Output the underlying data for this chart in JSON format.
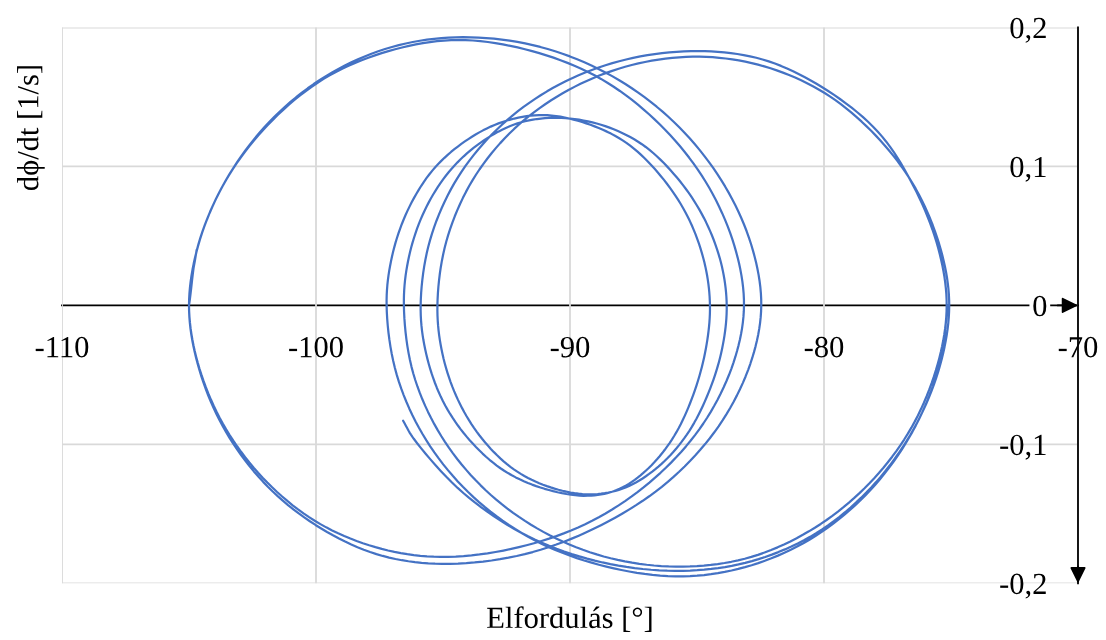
{
  "chart_data": {
    "type": "line",
    "xlabel": "Elfordulás [°]",
    "ylabel": "dϕ/dt [1/s]",
    "xlim": [
      -110,
      -70
    ],
    "xticks": [
      -110,
      -100,
      -90,
      -80,
      -70
    ],
    "ylim": [
      -0.2,
      0.2
    ],
    "yticks": [
      {
        "value": -0.2,
        "label": "-0,2"
      },
      {
        "value": -0.1,
        "label": "-0,1"
      },
      0,
      {
        "value": 0.1,
        "label": "0,1"
      },
      {
        "value": 0.2,
        "label": "0,2"
      }
    ],
    "grid": true,
    "series": [
      {
        "color": "#4472c4",
        "x": [
          -105.0,
          -104.63,
          -103.55,
          -101.84,
          -99.61,
          -97.01,
          -94.21,
          -91.17,
          -88.34,
          -85.91,
          -84.04,
          -82.87,
          -82.47,
          -82.9,
          -84.15,
          -86.15,
          -88.76,
          -91.78,
          -95.04,
          -97.62,
          -100.02,
          -102.08,
          -103.67,
          -104.66,
          -105.0,
          -104.64,
          -103.58,
          -101.89,
          -99.7,
          -97.15,
          -94.4,
          -91.49,
          -88.78,
          -86.45,
          -84.66,
          -83.53,
          -83.15,
          -83.56,
          -84.75,
          -86.65,
          -89.13,
          -92.01,
          -95.1,
          -97.66,
          -100.05,
          -102.1,
          -103.67,
          -104.66,
          -105.0,
          -104.7
        ],
        "values": [
          0,
          0.044,
          0.09,
          0.132,
          0.165,
          0.186,
          0.193,
          0.186,
          0.165,
          0.132,
          0.09,
          0.044,
          0,
          -0.042,
          -0.087,
          -0.127,
          -0.158,
          -0.179,
          -0.186,
          -0.179,
          -0.158,
          -0.127,
          -0.087,
          -0.042,
          0,
          0.043,
          0.089,
          0.13,
          0.163,
          0.183,
          0.191,
          0.183,
          0.163,
          0.13,
          0.089,
          0.043,
          0,
          -0.041,
          -0.085,
          -0.124,
          -0.155,
          -0.174,
          -0.181,
          -0.174,
          -0.155,
          -0.124,
          -0.085,
          -0.041,
          0,
          0.04
        ]
      },
      {
        "color": "#4472c4",
        "x": [
          -75.12,
          -75.47,
          -76.52,
          -78.18,
          -80.34,
          -82.85,
          -85.55,
          -88.57,
          -91.39,
          -93.8,
          -95.66,
          -96.82,
          -97.22,
          -97.01,
          -96.4,
          -95.42,
          -94.14,
          -92.66,
          -91.06,
          -89.36,
          -87.78,
          -86.42,
          -85.37,
          -84.71,
          -84.49,
          -84.65,
          -85.14,
          -85.9,
          -86.9,
          -88.05,
          -89.3,
          -91.0,
          -92.59,
          -93.95,
          -95.0,
          -95.66,
          -95.88,
          -95.51,
          -94.42,
          -92.68,
          -90.42,
          -87.79,
          -84.96,
          -82.42,
          -80.07,
          -77.88,
          -76.48,
          -75.5,
          -75.17,
          -75.52,
          -76.56,
          -78.21,
          -80.36,
          -82.86,
          -85.55,
          -88.4,
          -91.05,
          -93.32,
          -95.07,
          -96.17,
          -96.54,
          -96.34,
          -95.73,
          -94.77,
          -93.53,
          -92.07,
          -90.51,
          -88.78,
          -87.17,
          -85.79,
          -84.73,
          -84.06,
          -83.83,
          -84.01,
          -84.55,
          -85.4,
          -86.52,
          -87.81,
          -89.2,
          -90.76,
          -92.21,
          -93.46,
          -94.41,
          -95.02,
          -95.22,
          -94.87,
          -93.84,
          -92.2,
          -90.06,
          -87.57,
          -84.9,
          -82.35,
          -79.99,
          -77.95,
          -76.39,
          -75.4,
          -75.07,
          -75.43,
          -76.47,
          -78.14,
          -80.31,
          -82.84,
          -85.55,
          -88.72,
          -91.67,
          -94.2,
          -96.15,
          -96.57
        ],
        "values": [
          0,
          -0.044,
          -0.091,
          -0.133,
          -0.166,
          -0.187,
          -0.195,
          -0.188,
          -0.169,
          -0.138,
          -0.097,
          -0.05,
          0,
          0.035,
          0.068,
          0.097,
          0.118,
          0.132,
          0.137,
          0.131,
          0.117,
          0.093,
          0.064,
          0.031,
          0,
          -0.031,
          -0.064,
          -0.094,
          -0.117,
          -0.132,
          -0.137,
          -0.132,
          -0.119,
          -0.097,
          -0.069,
          -0.035,
          0,
          0.047,
          0.092,
          0.13,
          0.159,
          0.177,
          0.183,
          0.177,
          0.157,
          0.125,
          0.086,
          0.041,
          0,
          -0.042,
          -0.088,
          -0.128,
          -0.16,
          -0.181,
          -0.188,
          -0.182,
          -0.163,
          -0.133,
          -0.094,
          -0.049,
          0,
          0.035,
          0.068,
          0.096,
          0.117,
          0.131,
          0.135,
          0.13,
          0.116,
          0.092,
          0.063,
          0.031,
          0,
          -0.031,
          -0.063,
          -0.093,
          -0.116,
          -0.131,
          -0.136,
          -0.131,
          -0.118,
          -0.096,
          -0.068,
          -0.035,
          0,
          0.046,
          0.09,
          0.127,
          0.155,
          0.173,
          0.179,
          0.172,
          0.153,
          0.122,
          0.084,
          0.04,
          0,
          -0.043,
          -0.089,
          -0.131,
          -0.164,
          -0.184,
          -0.191,
          -0.185,
          -0.166,
          -0.135,
          -0.096,
          -0.083
        ]
      }
    ]
  }
}
